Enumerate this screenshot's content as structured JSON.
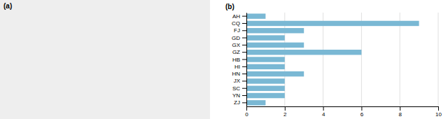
{
  "chart_data": {
    "type": "bar",
    "orientation": "horizontal",
    "title": "(b)",
    "annotations": [
      "(a)"
    ],
    "categories": [
      "AH",
      "CQ",
      "FJ",
      "GD",
      "GX",
      "GZ",
      "HB",
      "HI",
      "HN",
      "JX",
      "SC",
      "YN",
      "ZJ"
    ],
    "values": [
      1.0,
      9.0,
      3.0,
      2.0,
      3.0,
      6.0,
      2.0,
      2.0,
      3.0,
      2.0,
      2.0,
      2.0,
      1.0
    ],
    "color": "#7ab8d4",
    "xlim": [
      0,
      10
    ],
    "xticks": [
      0,
      2,
      4,
      6,
      8,
      10
    ],
    "grid": true
  }
}
